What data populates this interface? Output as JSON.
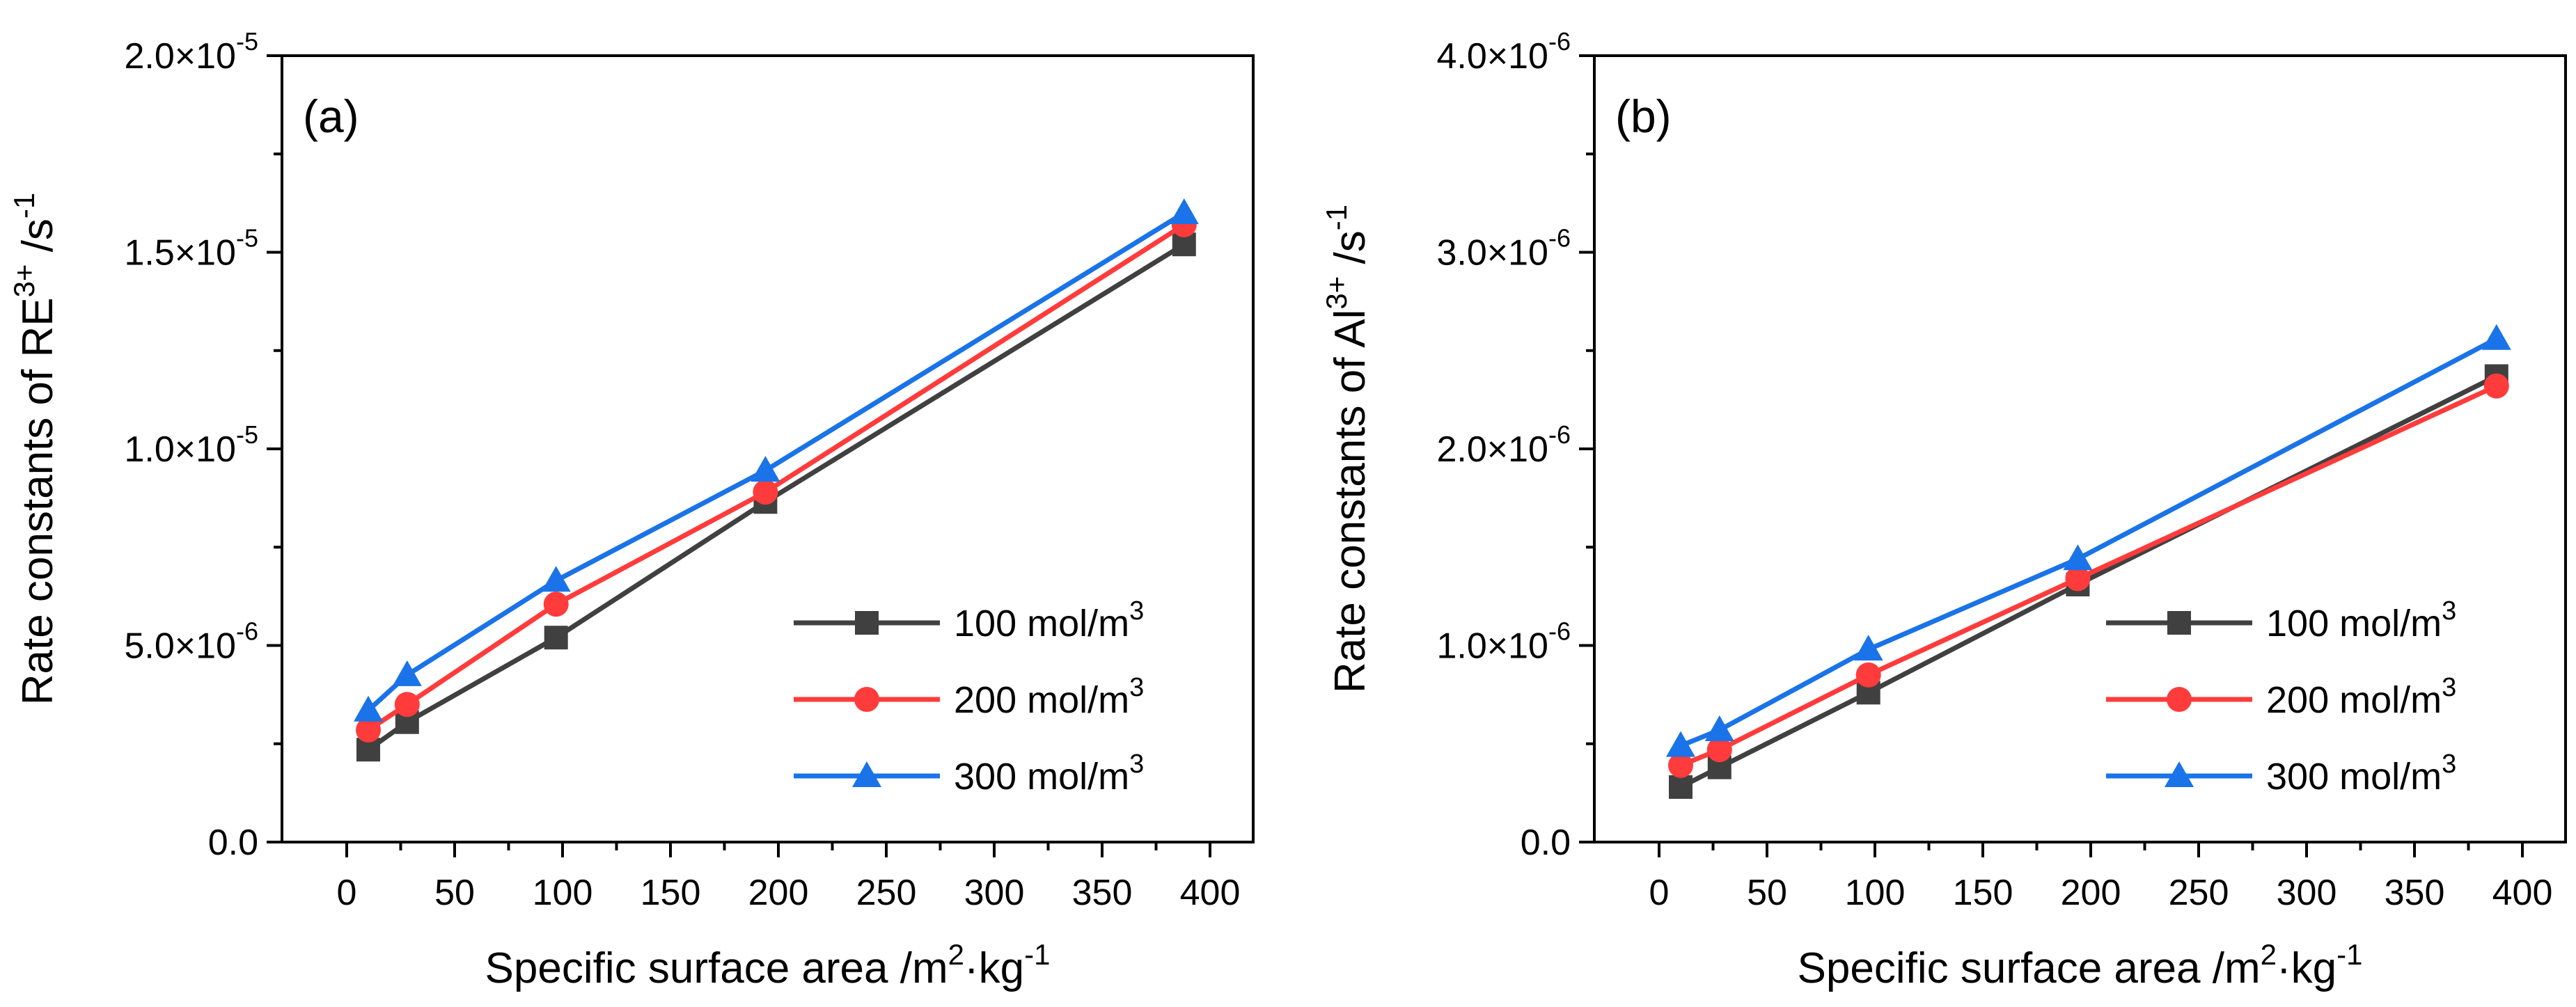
{
  "chart_data": [
    {
      "type": "line",
      "panel_label": "(a)",
      "xlabel": {
        "main": "Specific surface area /m",
        "sup": "2",
        "tail": "·kg",
        "sup2": "-1"
      },
      "ylabel": {
        "main": "Rate constants of RE",
        "sup": "3+",
        "tail": " /s",
        "sup2": "-1"
      },
      "xlim": [
        -30,
        420
      ],
      "ylim": [
        0,
        2e-05
      ],
      "xticks": [
        0,
        50,
        100,
        150,
        200,
        250,
        300,
        350,
        400
      ],
      "yticks": [
        {
          "value": 0,
          "mant": "0.0",
          "exp": ""
        },
        {
          "value": 5e-06,
          "mant": "5.0×10",
          "exp": "-6"
        },
        {
          "value": 1e-05,
          "mant": "1.0×10",
          "exp": "-5"
        },
        {
          "value": 1.5e-05,
          "mant": "1.5×10",
          "exp": "-5"
        },
        {
          "value": 2e-05,
          "mant": "2.0×10",
          "exp": "-5"
        }
      ],
      "x": [
        10,
        28,
        97,
        194,
        388
      ],
      "series": [
        {
          "name": "100 mol/m",
          "name_sup": "3",
          "color": "#404040",
          "marker": "square",
          "values": [
            2.35e-06,
            3.05e-06,
            5.2e-06,
            8.65e-06,
            1.52e-05
          ]
        },
        {
          "name": "200 mol/m",
          "name_sup": "3",
          "color": "#ff3b3b",
          "marker": "circle",
          "values": [
            2.85e-06,
            3.5e-06,
            6.05e-06,
            8.9e-06,
            1.57e-05
          ]
        },
        {
          "name": "300 mol/m",
          "name_sup": "3",
          "color": "#1a73e8",
          "marker": "triangle",
          "values": [
            3.35e-06,
            4.25e-06,
            6.65e-06,
            9.45e-06,
            1.6e-05
          ]
        }
      ],
      "legend_position": "bottom-right"
    },
    {
      "type": "line",
      "panel_label": "(b)",
      "xlabel": {
        "main": "Specific surface area /m",
        "sup": "2",
        "tail": "·kg",
        "sup2": "-1"
      },
      "ylabel": {
        "main": "Rate constants of Al",
        "sup": "3+",
        "tail": " /s",
        "sup2": "-1"
      },
      "xlim": [
        -30,
        420
      ],
      "ylim": [
        0,
        4e-06
      ],
      "xticks": [
        0,
        50,
        100,
        150,
        200,
        250,
        300,
        350,
        400
      ],
      "yticks": [
        {
          "value": 0,
          "mant": "0.0",
          "exp": ""
        },
        {
          "value": 1e-06,
          "mant": "1.0×10",
          "exp": "-6"
        },
        {
          "value": 2e-06,
          "mant": "2.0×10",
          "exp": "-6"
        },
        {
          "value": 3e-06,
          "mant": "3.0×10",
          "exp": "-6"
        },
        {
          "value": 4e-06,
          "mant": "4.0×10",
          "exp": "-6"
        }
      ],
      "x": [
        10,
        28,
        97,
        194,
        388
      ],
      "series": [
        {
          "name": "100 mol/m",
          "name_sup": "3",
          "color": "#404040",
          "marker": "square",
          "values": [
            2.8e-07,
            3.8e-07,
            7.6e-07,
            1.31e-06,
            2.37e-06
          ]
        },
        {
          "name": "200 mol/m",
          "name_sup": "3",
          "color": "#ff3b3b",
          "marker": "circle",
          "values": [
            3.9e-07,
            4.7e-07,
            8.5e-07,
            1.34e-06,
            2.32e-06
          ]
        },
        {
          "name": "300 mol/m",
          "name_sup": "3",
          "color": "#1a73e8",
          "marker": "triangle",
          "values": [
            4.9e-07,
            5.7e-07,
            9.8e-07,
            1.44e-06,
            2.56e-06
          ]
        }
      ],
      "legend_position": "bottom-right"
    }
  ]
}
